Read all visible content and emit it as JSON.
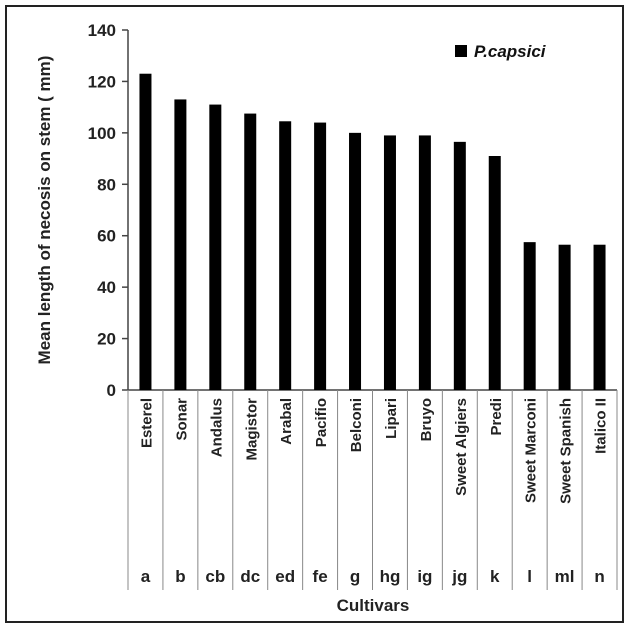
{
  "chart_data": {
    "type": "bar",
    "categories": [
      "Esterel",
      "Sonar",
      "Andalus",
      "Magistor",
      "Arabal",
      "Pacifio",
      "Belconi",
      "Lipari",
      "Bruyo",
      "Sweet Algiers",
      "Predi",
      "Sweet Marconi",
      "Sweet Spanish",
      "Italico II"
    ],
    "groups": [
      "a",
      "b",
      "cb",
      "dc",
      "ed",
      "fe",
      "g",
      "hg",
      "ig",
      "jg",
      "k",
      "l",
      "ml",
      "n"
    ],
    "series": [
      {
        "name": "P.capsici",
        "values": [
          123,
          113,
          111,
          107.5,
          104.5,
          104,
          100,
          99,
          99,
          96.5,
          91,
          57.5,
          56.5,
          56.5
        ],
        "color": "#000000"
      }
    ],
    "xlabel": "Cultivars",
    "ylabel": "Mean length of necosis on stem ( mm)",
    "ylim": [
      0,
      140
    ],
    "yticks": [
      0,
      20,
      40,
      60,
      80,
      100,
      120,
      140
    ],
    "grid": false,
    "legend": "top-right"
  }
}
